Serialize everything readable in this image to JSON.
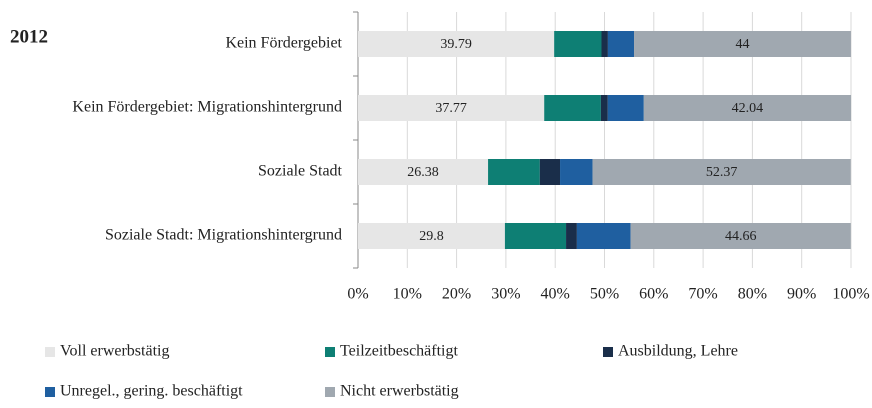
{
  "chart_data": {
    "type": "stacked-bar-horizontal",
    "title": "2012",
    "categories": [
      "Kein Fördergebiet",
      "Kein Fördergebiet: Migrationshintergrund",
      "Soziale Stadt",
      "Soziale Stadt: Migrationshintergrund"
    ],
    "series": [
      {
        "name": "Voll erwerbstätig",
        "color": "#e6e6e6",
        "labels": true,
        "values": [
          39.79,
          37.77,
          26.38,
          29.8
        ]
      },
      {
        "name": "Teilzeitbeschäftigt",
        "color": "#0e7f74",
        "labels": false,
        "values": [
          9.6,
          11.5,
          10.5,
          12.4
        ]
      },
      {
        "name": "Ausbildung, Lehre",
        "color": "#1a2e4a",
        "labels": false,
        "values": [
          1.3,
          1.4,
          4.1,
          2.2
        ]
      },
      {
        "name": "Unregel., gering. beschäftigt",
        "color": "#1f5fa0",
        "labels": false,
        "values": [
          5.3,
          7.3,
          6.6,
          10.9
        ]
      },
      {
        "name": "Nicht erwerbstätig",
        "color": "#a0a8b0",
        "labels": true,
        "values": [
          44,
          42.04,
          52.37,
          44.66
        ]
      }
    ],
    "xlim": [
      0,
      100
    ],
    "xticks": [
      {
        "value": 0,
        "label": "0%"
      },
      {
        "value": 10,
        "label": "10%"
      },
      {
        "value": 20,
        "label": "20%"
      },
      {
        "value": 30,
        "label": "30%"
      },
      {
        "value": 40,
        "label": "40%"
      },
      {
        "value": 50,
        "label": "50%"
      },
      {
        "value": 60,
        "label": "60%"
      },
      {
        "value": 70,
        "label": "70%"
      },
      {
        "value": 80,
        "label": "80%"
      },
      {
        "value": 90,
        "label": "90%"
      },
      {
        "value": 100,
        "label": "100%"
      }
    ],
    "grid": true
  }
}
